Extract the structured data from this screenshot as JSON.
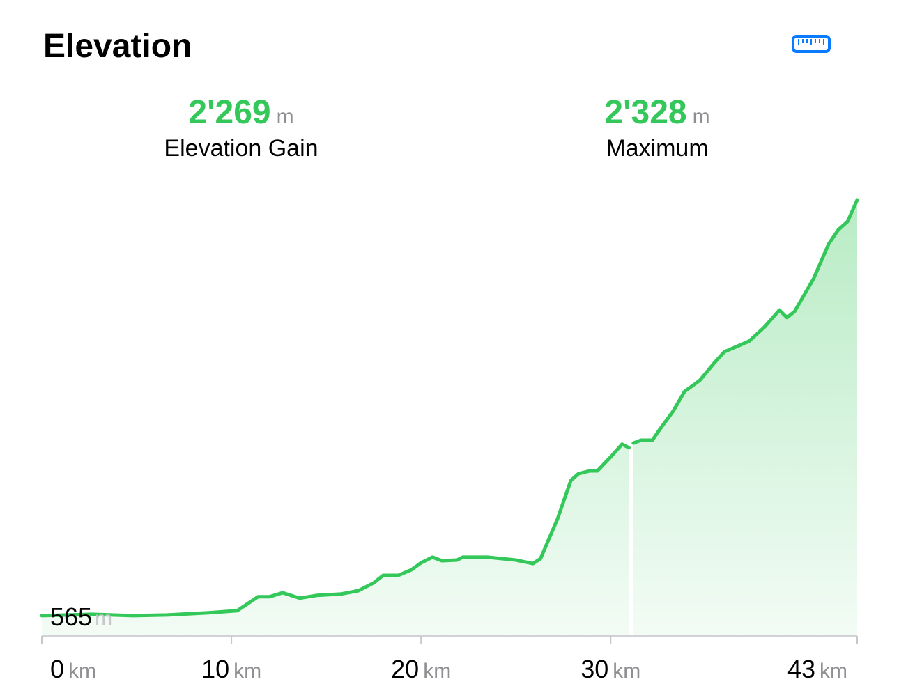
{
  "chart_data": {
    "type": "area",
    "title": "Elevation",
    "stats": [
      {
        "value": "2'269",
        "unit": "m",
        "label": "Elevation Gain"
      },
      {
        "value": "2'328",
        "unit": "m",
        "label": "Maximum"
      }
    ],
    "start_label": {
      "value": 565,
      "unit": "m"
    },
    "x_unit": "km",
    "color": "#34c759",
    "x": [
      0,
      2.6,
      4.8,
      6.6,
      8.8,
      10.3,
      11.4,
      12.0,
      12.7,
      13.6,
      14.5,
      15.8,
      16.7,
      17.5,
      18.0,
      18.8,
      19.5,
      20.0,
      20.6,
      21.1,
      21.9,
      22.2,
      23.5,
      25.0,
      25.9,
      26.3,
      27.2,
      27.9,
      28.3,
      28.9,
      29.3,
      30.0,
      30.6,
      30.96,
      31.1,
      31.2,
      31.6,
      32.2,
      32.6,
      33.3,
      33.9,
      34.4,
      34.7,
      35.5,
      36.0,
      37.3,
      38.1,
      38.9,
      39.3,
      39.7,
      40.7,
      41.5,
      42.0,
      42.5,
      43.0
    ],
    "values": [
      565,
      571,
      565,
      568,
      577,
      586,
      645,
      645,
      662,
      639,
      651,
      657,
      671,
      704,
      736,
      736,
      760,
      789,
      813,
      798,
      801,
      813,
      813,
      801,
      786,
      807,
      976,
      1138,
      1167,
      1179,
      1179,
      1238,
      1292,
      1277,
      null,
      1297,
      1309,
      1309,
      1356,
      1433,
      1516,
      1545,
      1563,
      1640,
      1684,
      1729,
      1788,
      1861,
      1829,
      1855,
      1994,
      2142,
      2201,
      2237,
      2328
    ],
    "xlim": [
      0,
      43
    ],
    "ylim": [
      479,
      2328
    ],
    "xticks": [
      0,
      10,
      20,
      30,
      43
    ]
  }
}
